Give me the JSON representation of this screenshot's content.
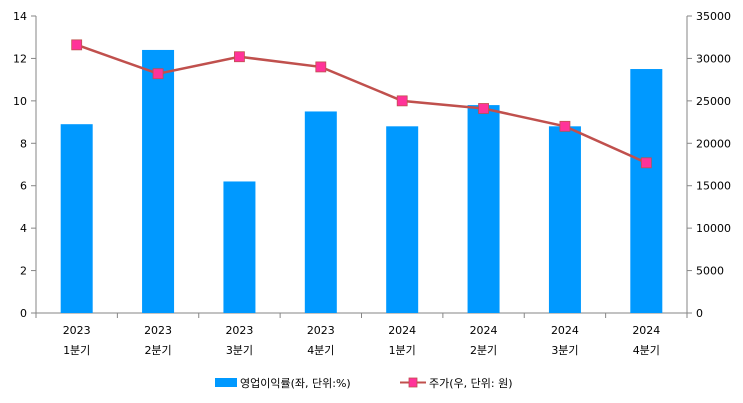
{
  "chart_data": {
    "type": "bar+line",
    "title": "",
    "categories": [
      [
        "2023",
        "1분기"
      ],
      [
        "2023",
        "2분기"
      ],
      [
        "2023",
        "3분기"
      ],
      [
        "2023",
        "4분기"
      ],
      [
        "2024",
        "1분기"
      ],
      [
        "2024",
        "2분기"
      ],
      [
        "2024",
        "3분기"
      ],
      [
        "2024",
        "4분기"
      ]
    ],
    "y_left": {
      "min": 0,
      "max": 14,
      "ticks": [
        0,
        2,
        4,
        6,
        8,
        10,
        12,
        14
      ]
    },
    "y_right": {
      "min": 0,
      "max": 35000,
      "ticks": [
        0,
        5000,
        10000,
        15000,
        20000,
        25000,
        30000,
        35000
      ]
    },
    "grid": false,
    "legend_position": "bottom",
    "series": [
      {
        "name": "영업이익률(좌, 단위:%)",
        "type": "bar",
        "axis": "left",
        "color": "#0099FF",
        "values": [
          8.9,
          12.4,
          6.2,
          9.5,
          8.8,
          9.8,
          8.8,
          11.5
        ]
      },
      {
        "name": "주가(우, 단위: 원)",
        "type": "line",
        "axis": "right",
        "color": "#C0504D",
        "marker_color": "#FF3399",
        "values": [
          31600,
          28200,
          30200,
          29000,
          25000,
          24100,
          22000,
          17700
        ]
      }
    ]
  }
}
